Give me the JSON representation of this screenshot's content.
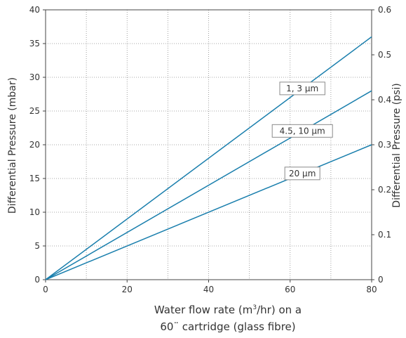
{
  "chart_data": {
    "type": "line",
    "xlabel_main": "Water flow rate (m",
    "xlabel_sup": "3",
    "xlabel_rest": "/hr) on a",
    "xlabel_line2": "60¨ cartridge (glass fibre)",
    "ylabel": "Differential Pressure (mbar)",
    "y2label": "Differential Pressure (psi)",
    "xlim": [
      0,
      80
    ],
    "ylim": [
      0,
      40
    ],
    "y2lim": [
      0,
      0.6
    ],
    "xticks": [
      0,
      20,
      40,
      60,
      80
    ],
    "yticks": [
      0,
      5,
      10,
      15,
      20,
      25,
      30,
      35,
      40
    ],
    "y2ticks": [
      "0",
      "0.1",
      "0.2",
      "0.3",
      "0.4",
      "0.5",
      "0.6"
    ],
    "grid": true,
    "line_color": "#1a7fad",
    "series": [
      {
        "name": "1, 3 µm",
        "x": [
          0,
          80
        ],
        "y": [
          0,
          36
        ]
      },
      {
        "name": "4.5, 10 µm",
        "x": [
          0,
          80
        ],
        "y": [
          0,
          28
        ]
      },
      {
        "name": "20 µm",
        "x": [
          0,
          80
        ],
        "y": [
          0,
          20
        ]
      }
    ],
    "annotations": [
      {
        "text": "1, 3 µm",
        "series": 0,
        "at_x": 63
      },
      {
        "text": "4.5, 10 µm",
        "series": 1,
        "at_x": 63
      },
      {
        "text": "20 µm",
        "series": 2,
        "at_x": 63
      }
    ]
  }
}
